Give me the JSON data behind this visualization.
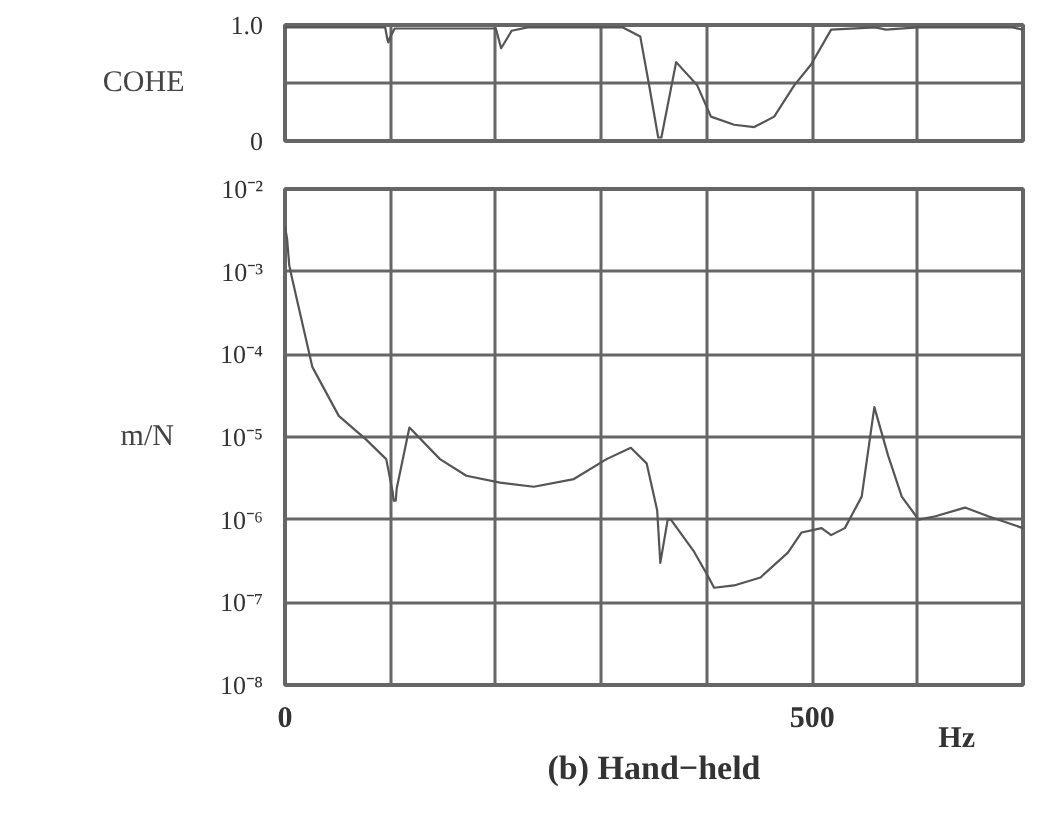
{
  "chart_data": [
    {
      "type": "line",
      "ylabel": "COHE",
      "xlim": [
        0,
        700
      ],
      "ylim": [
        0,
        1
      ],
      "xticks": [
        {
          "value": 0,
          "label": null
        },
        {
          "value": 100,
          "label": null
        },
        {
          "value": 200,
          "label": null
        },
        {
          "value": 300,
          "label": null
        },
        {
          "value": 400,
          "label": null
        },
        {
          "value": 500,
          "label": null
        },
        {
          "value": 600,
          "label": null
        },
        {
          "value": 700,
          "label": null
        }
      ],
      "yticks": [
        0,
        {
          "value": 0.5,
          "label": null
        },
        {
          "value": 1,
          "label": "1.0"
        }
      ],
      "tick_labels": "y",
      "grid": true,
      "series": [
        {
          "color": "#555555",
          "x": [
            0,
            95,
            97,
            98,
            99,
            104,
            200,
            205,
            215,
            230,
            320,
            337,
            345,
            354,
            357,
            371,
            391,
            404,
            426,
            445,
            464,
            483,
            499,
            518,
            560,
            570,
            600,
            690,
            700
          ],
          "values": [
            0.98,
            0.98,
            0.88,
            0.85,
            0.88,
            0.97,
            0.97,
            0.8,
            0.95,
            0.98,
            0.98,
            0.9,
            0.5,
            0.03,
            0.03,
            0.68,
            0.48,
            0.21,
            0.14,
            0.12,
            0.21,
            0.48,
            0.66,
            0.96,
            0.98,
            0.96,
            0.98,
            0.98,
            0.96
          ]
        }
      ]
    },
    {
      "type": "line",
      "ylabel": "m/N",
      "xlabel": "Hz",
      "title": "(b) Hand−held",
      "xlim": [
        0,
        700
      ],
      "ylim": [
        1e-08,
        0.01
      ],
      "log": true,
      "xticks": [
        0,
        {
          "value": 100,
          "label": null
        },
        {
          "value": 200,
          "label": null
        },
        {
          "value": 300,
          "label": null
        },
        {
          "value": 400,
          "label": null
        },
        500,
        {
          "value": 600,
          "label": null
        },
        {
          "value": 700,
          "label": null
        }
      ],
      "yticks": [
        {
          "value": 1e-08,
          "label": "10⁻⁸"
        },
        {
          "value": 1e-07,
          "label": "10⁻⁷"
        },
        {
          "value": 1e-06,
          "label": "10⁻⁶"
        },
        {
          "value": 1e-05,
          "label": "10⁻⁵"
        },
        {
          "value": 0.0001,
          "label": "10⁻⁴"
        },
        {
          "value": 0.001,
          "label": "10⁻³"
        },
        {
          "value": 0.01,
          "label": "10⁻²"
        }
      ],
      "grid": true,
      "series": [
        {
          "color": "#555555",
          "x": [
            0,
            2,
            4,
            7,
            26,
            51,
            77,
            96,
            102,
            103,
            105,
            106,
            118,
            147,
            172,
            204,
            236,
            274,
            305,
            328,
            343,
            353,
            356,
            363,
            366,
            388,
            401,
            407,
            426,
            451,
            477,
            490,
            509,
            518,
            531,
            547,
            559,
            572,
            585,
            601,
            617,
            645,
            667,
            700
          ],
          "values": [
            0.0035,
            0.0025,
            0.0012,
            0.0008,
            7e-05,
            1.8e-05,
            9.3e-06,
            5.4e-06,
            2.2e-06,
            1.7e-06,
            1.7e-06,
            2.4e-06,
            1.3e-05,
            5.4e-06,
            3.4e-06,
            2.8e-06,
            2.5e-06,
            3.1e-06,
            5.4e-06,
            7.4e-06,
            4.8e-06,
            1.3e-06,
            3e-07,
            1e-06,
            1e-06,
            4.1e-07,
            2.1e-07,
            1.5e-07,
            1.6e-07,
            2e-07,
            4e-07,
            7e-07,
            7.9e-07,
            6.5e-07,
            7.9e-07,
            1.9e-06,
            2.3e-05,
            6e-06,
            1.9e-06,
            1e-06,
            1.1e-06,
            1.4e-06,
            1.1e-06,
            7.9e-07
          ]
        }
      ]
    }
  ]
}
